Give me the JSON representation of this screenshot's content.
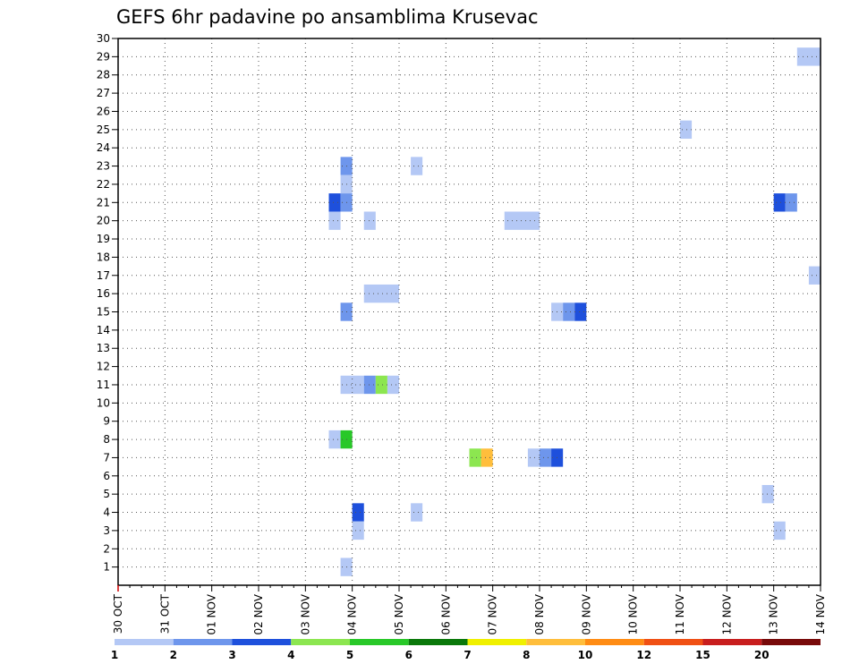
{
  "chart_data": {
    "type": "heatmap",
    "title": "GEFS 6hr padavine po ansamblima Krusevac",
    "xlabel": "",
    "ylabel": "",
    "x_ticks": [
      "30 OCT",
      "31 OCT",
      "01 NOV",
      "02 NOV",
      "03 NOV",
      "04 NOV",
      "05 NOV",
      "06 NOV",
      "07 NOV",
      "08 NOV",
      "09 NOV",
      "10 NOV",
      "11 NOV",
      "12 NOV",
      "13 NOV",
      "14 NOV"
    ],
    "y_ticks": [
      "1",
      "2",
      "3",
      "4",
      "5",
      "6",
      "7",
      "8",
      "9",
      "10",
      "11",
      "12",
      "13",
      "14",
      "15",
      "16",
      "17",
      "18",
      "19",
      "20",
      "21",
      "22",
      "23",
      "24",
      "25",
      "26",
      "27",
      "28",
      "29",
      "30"
    ],
    "x_range_days": [
      0,
      15
    ],
    "y_range": [
      0,
      30
    ],
    "grid": true,
    "x_unit": "days since 30 OCT 00Z, 6-hour steps",
    "colorbar": {
      "labels": [
        "1",
        "2",
        "3",
        "4",
        "5",
        "6",
        "7",
        "8",
        "10",
        "12",
        "15",
        "20"
      ],
      "colors": [
        "#b4c8f5",
        "#6e96ec",
        "#1e50dc",
        "#8ce650",
        "#28c828",
        "#0a780a",
        "#f0f000",
        "#ffbe3c",
        "#ff8c14",
        "#f05014",
        "#c81e1e",
        "#780a0a"
      ]
    },
    "cells": [
      {
        "member": 29,
        "t": 14.5,
        "dur": 0.5,
        "level": 1
      },
      {
        "member": 25,
        "t": 12.0,
        "dur": 0.25,
        "level": 1
      },
      {
        "member": 23,
        "t": 4.75,
        "dur": 0.25,
        "level": 2
      },
      {
        "member": 23,
        "t": 6.25,
        "dur": 0.25,
        "level": 1
      },
      {
        "member": 22,
        "t": 4.75,
        "dur": 0.25,
        "level": 1
      },
      {
        "member": 21,
        "t": 4.5,
        "dur": 0.25,
        "level": 3
      },
      {
        "member": 21,
        "t": 4.75,
        "dur": 0.25,
        "level": 2
      },
      {
        "member": 21,
        "t": 14.0,
        "dur": 0.25,
        "level": 3
      },
      {
        "member": 21,
        "t": 14.25,
        "dur": 0.25,
        "level": 2
      },
      {
        "member": 20,
        "t": 4.5,
        "dur": 0.25,
        "level": 1
      },
      {
        "member": 20,
        "t": 5.25,
        "dur": 0.25,
        "level": 1
      },
      {
        "member": 20,
        "t": 8.25,
        "dur": 0.75,
        "level": 1
      },
      {
        "member": 17,
        "t": 14.75,
        "dur": 0.25,
        "level": 1
      },
      {
        "member": 16,
        "t": 5.25,
        "dur": 0.75,
        "level": 1
      },
      {
        "member": 15,
        "t": 4.75,
        "dur": 0.25,
        "level": 2
      },
      {
        "member": 15,
        "t": 9.25,
        "dur": 0.25,
        "level": 1
      },
      {
        "member": 15,
        "t": 9.5,
        "dur": 0.25,
        "level": 2
      },
      {
        "member": 15,
        "t": 9.75,
        "dur": 0.25,
        "level": 3
      },
      {
        "member": 11,
        "t": 4.75,
        "dur": 0.5,
        "level": 1
      },
      {
        "member": 11,
        "t": 5.25,
        "dur": 0.25,
        "level": 2
      },
      {
        "member": 11,
        "t": 5.5,
        "dur": 0.25,
        "level": 4
      },
      {
        "member": 11,
        "t": 5.75,
        "dur": 0.25,
        "level": 1
      },
      {
        "member": 8,
        "t": 4.5,
        "dur": 0.25,
        "level": 1
      },
      {
        "member": 8,
        "t": 4.75,
        "dur": 0.25,
        "level": 5
      },
      {
        "member": 7,
        "t": 7.5,
        "dur": 0.25,
        "level": 4
      },
      {
        "member": 7,
        "t": 7.75,
        "dur": 0.25,
        "level": 8
      },
      {
        "member": 7,
        "t": 8.75,
        "dur": 0.25,
        "level": 1
      },
      {
        "member": 7,
        "t": 9.0,
        "dur": 0.25,
        "level": 2
      },
      {
        "member": 7,
        "t": 9.25,
        "dur": 0.25,
        "level": 3
      },
      {
        "member": 5,
        "t": 13.75,
        "dur": 0.25,
        "level": 1
      },
      {
        "member": 4,
        "t": 5.0,
        "dur": 0.25,
        "level": 3
      },
      {
        "member": 4,
        "t": 6.25,
        "dur": 0.25,
        "level": 1
      },
      {
        "member": 3,
        "t": 5.0,
        "dur": 0.25,
        "level": 1
      },
      {
        "member": 3,
        "t": 14.0,
        "dur": 0.25,
        "level": 1
      },
      {
        "member": 1,
        "t": 4.75,
        "dur": 0.25,
        "level": 1
      }
    ]
  }
}
